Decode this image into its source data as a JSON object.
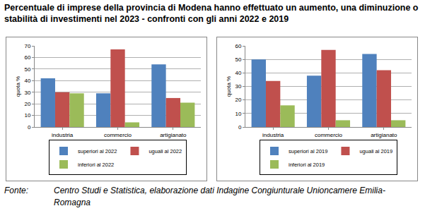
{
  "header": {
    "title": "Percentuale di imprese della provincia di Modena hanno effettuato un aumento, una diminuzione o stabilità di investimenti nel 2023 - confronti con gli anni 2022 e 2019"
  },
  "footer": {
    "label": "Fonte:",
    "text": "Centro Studi e Statistica, elaborazione dati Indagine Congiunturale Unioncamere Emilia-Romagna"
  },
  "chart_data": [
    {
      "type": "bar",
      "ylabel": "quota %",
      "categories": [
        "industria",
        "commercio",
        "artigianato"
      ],
      "series": [
        {
          "name": "superiori al 2022",
          "color": "#4f81bd",
          "values": [
            42,
            29,
            54
          ]
        },
        {
          "name": "uguali al 2022",
          "color": "#c0504d",
          "values": [
            30,
            67,
            25
          ]
        },
        {
          "name": "inferiori al 2022",
          "color": "#9bbb59",
          "values": [
            29,
            4,
            21
          ]
        }
      ],
      "ylim": [
        0,
        70
      ],
      "yticks": [
        0,
        10,
        20,
        30,
        40,
        50,
        60,
        70
      ],
      "grid": true,
      "legend": "bottom"
    },
    {
      "type": "bar",
      "ylabel": "quota %",
      "categories": [
        "industria",
        "commercio",
        "artigianato"
      ],
      "series": [
        {
          "name": "superiori al 2019",
          "color": "#4f81bd",
          "values": [
            50,
            38,
            54
          ]
        },
        {
          "name": "uguali al 2019",
          "color": "#c0504d",
          "values": [
            34,
            57,
            42
          ]
        },
        {
          "name": "inferiori al 2019",
          "color": "#9bbb59",
          "values": [
            16,
            5,
            5
          ]
        }
      ],
      "ylim": [
        0,
        60
      ],
      "yticks": [
        0,
        10,
        20,
        30,
        40,
        50,
        60
      ],
      "grid": true,
      "legend": "bottom"
    }
  ]
}
